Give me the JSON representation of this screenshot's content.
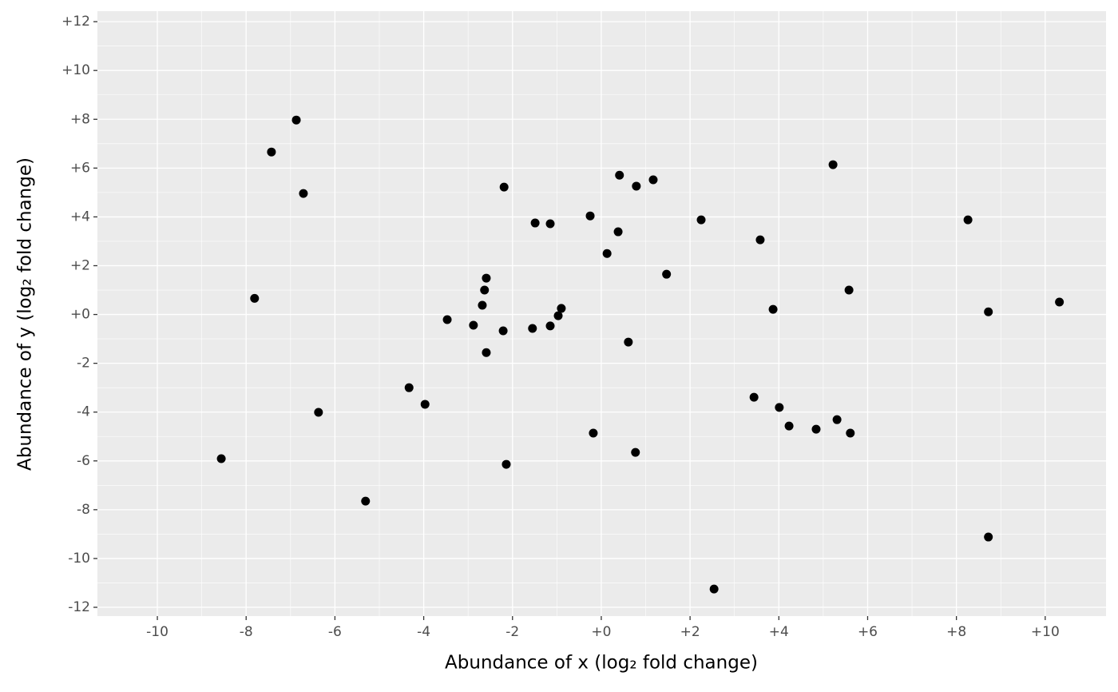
{
  "chart_data": {
    "type": "scatter",
    "x_label": "Abundance of x (log₂ fold change)",
    "y_label": "Abundance of y (log₂ fold change)",
    "color": "#000000",
    "grid": true,
    "xlim": [
      -11.35,
      11.37
    ],
    "ylim": [
      -12.36,
      12.43
    ],
    "xticks": [
      -10,
      -8,
      -6,
      -4,
      -2,
      {
        "value": 0,
        "label": "+0"
      },
      {
        "value": 2,
        "label": "+2"
      },
      {
        "value": 4,
        "label": "+4"
      },
      {
        "value": 6,
        "label": "+6"
      },
      {
        "value": 8,
        "label": "+8"
      },
      {
        "value": 10,
        "label": "+10"
      }
    ],
    "yticks": [
      -12,
      -10,
      -8,
      -6,
      -4,
      -2,
      {
        "value": 0,
        "label": "+0"
      },
      {
        "value": 2,
        "label": "+2"
      },
      {
        "value": 4,
        "label": "+4"
      },
      {
        "value": 6,
        "label": "+6"
      },
      {
        "value": 8,
        "label": "+8"
      },
      {
        "value": 10,
        "label": "+10"
      },
      {
        "value": 12,
        "label": "+12"
      }
    ],
    "x": [
      -6.87,
      -7.43,
      -6.71,
      -7.81,
      -6.37,
      -8.56,
      -5.31,
      -4.33,
      -3.97,
      -3.47,
      -2.88,
      -2.68,
      -2.63,
      -2.59,
      -2.59,
      -2.21,
      -2.19,
      -2.14,
      -1.55,
      -1.49,
      -1.15,
      -1.15,
      -0.97,
      -0.9,
      -0.25,
      -0.18,
      0.13,
      0.38,
      0.41,
      0.61,
      0.79,
      0.77,
      1.17,
      1.47,
      2.25,
      2.54,
      3.44,
      3.58,
      3.87,
      4.01,
      4.23,
      4.84,
      5.22,
      5.31,
      5.58,
      5.61,
      8.26,
      8.72,
      8.72,
      10.32
    ],
    "y": [
      7.97,
      6.66,
      4.96,
      0.66,
      -4.01,
      -5.91,
      -7.65,
      -3.0,
      -3.68,
      -0.21,
      -0.44,
      0.38,
      1.0,
      1.49,
      -1.56,
      -0.67,
      5.22,
      -6.14,
      -0.57,
      3.75,
      3.72,
      -0.47,
      -0.05,
      0.25,
      4.04,
      -4.86,
      2.5,
      3.39,
      5.71,
      -1.13,
      5.26,
      -5.65,
      5.52,
      1.65,
      3.88,
      -11.25,
      -3.39,
      3.06,
      0.21,
      -3.81,
      -4.57,
      -4.7,
      6.14,
      -4.31,
      1.0,
      -4.86,
      3.88,
      0.11,
      -9.12,
      0.51
    ]
  }
}
